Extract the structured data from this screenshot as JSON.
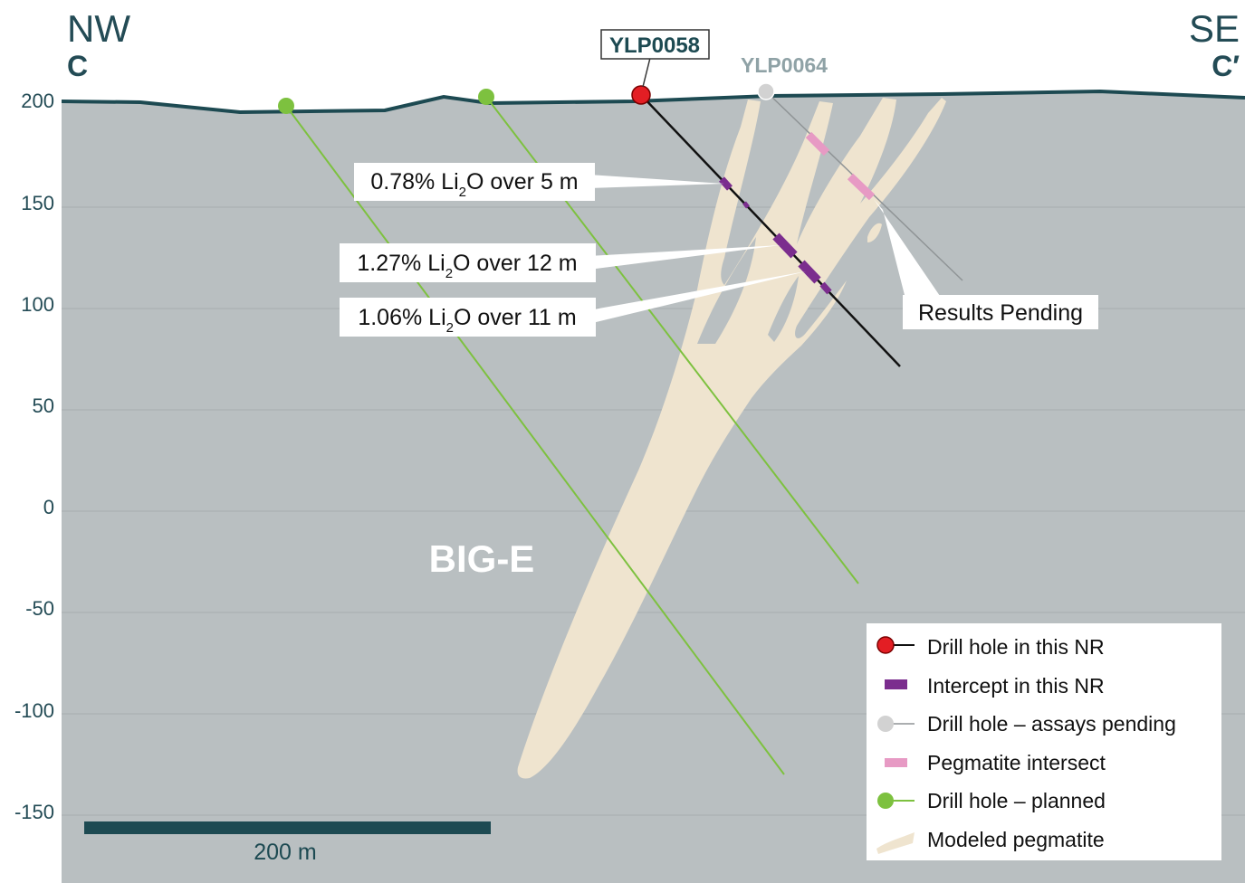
{
  "section": {
    "left_direction": "NW",
    "right_direction": "SE",
    "left_label": "C",
    "right_label": "C′",
    "zone_label": "BIG-E"
  },
  "axis": {
    "ticks": [
      {
        "value": 200,
        "label": "200"
      },
      {
        "value": 150,
        "label": "150"
      },
      {
        "value": 100,
        "label": "100"
      },
      {
        "value": 50,
        "label": "50"
      },
      {
        "value": 0,
        "label": "0"
      },
      {
        "value": -50,
        "label": "-50"
      },
      {
        "value": -100,
        "label": "-100"
      },
      {
        "value": -150,
        "label": "-150"
      }
    ]
  },
  "holes": {
    "primary": "YLP0058",
    "pending": "YLP0064"
  },
  "intercepts": [
    {
      "grade": "0.78% Li",
      "sub": "2",
      "rest": "O over 5 m"
    },
    {
      "grade": "1.27% Li",
      "sub": "2",
      "rest": "O over 12 m"
    },
    {
      "grade": "1.06% Li",
      "sub": "2",
      "rest": "O over 11 m"
    }
  ],
  "pending_label": "Results Pending",
  "scale_bar": {
    "label": "200 m",
    "length_m": 200
  },
  "legend": [
    {
      "icon": "red-drill-hole-icon",
      "label": "Drill hole in this NR"
    },
    {
      "icon": "purple-intercept-icon",
      "label": "Intercept in this NR"
    },
    {
      "icon": "grey-drill-hole-icon",
      "label": "Drill hole – assays pending"
    },
    {
      "icon": "pink-intersect-icon",
      "label": "Pegmatite intersect"
    },
    {
      "icon": "green-drill-hole-icon",
      "label": "Drill hole – planned"
    },
    {
      "icon": "pegmatite-swatch-icon",
      "label": "Modeled pegmatite"
    }
  ],
  "colors": {
    "ground": "#b9bfc1",
    "topography": "#1d4a52",
    "pegmatite": "#efe4cf",
    "drill_hole_this_nr": "#e31e24",
    "intercept": "#7b2d8e",
    "pending_hole": "#c8c8c8",
    "pegmatite_intersect": "#e79ac4",
    "planned_hole": "#7dc13f"
  }
}
